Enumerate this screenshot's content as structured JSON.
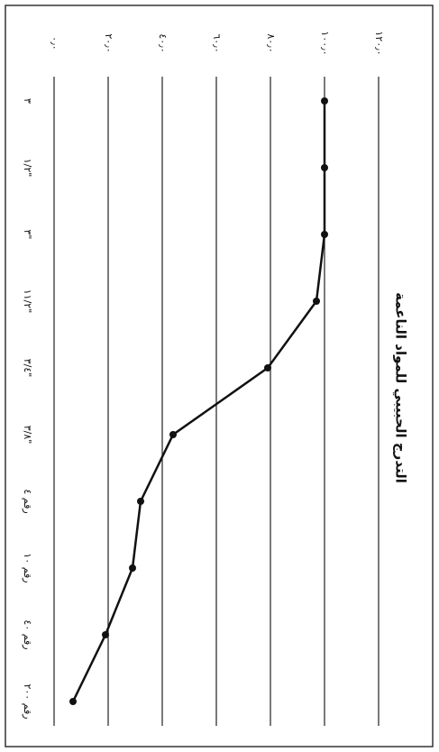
{
  "chart_data": {
    "type": "line",
    "title": "التدرج الحبيبي للمواد الناعمة",
    "categories": [
      "٣",
      "١/٢\"",
      "٣\"",
      "١١/٢\"",
      "٣/٤\"",
      "٣/٨\"",
      "رقم ٤",
      "رقم ١٠",
      "رقم ٤٠",
      "رقم ٢٠٠"
    ],
    "series": [
      {
        "name": "",
        "color": "#111111",
        "values": [
          100,
          100,
          100,
          97,
          79,
          44,
          32,
          29,
          19,
          7
        ]
      }
    ],
    "ylim": [
      0,
      120
    ],
    "yticks": [
      {
        "value": 0,
        "label": "٠٫٠"
      },
      {
        "value": 20,
        "label": "٢٠٫٠"
      },
      {
        "value": 40,
        "label": "٤٠٫٠"
      },
      {
        "value": 60,
        "label": "٦٠٫٠"
      },
      {
        "value": 80,
        "label": "٨٠٫٠"
      },
      {
        "value": 100,
        "label": "١٠٠٫٠"
      },
      {
        "value": 120,
        "label": "١٢٠٫٠"
      }
    ],
    "grid": true
  }
}
